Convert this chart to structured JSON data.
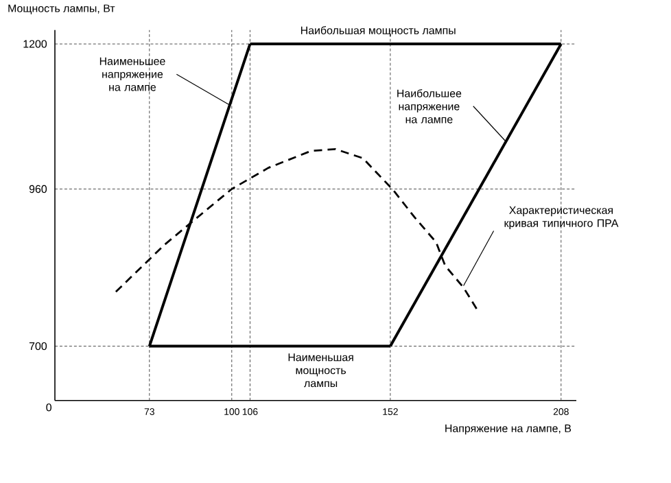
{
  "chart_data": {
    "type": "line",
    "xlabel": "Напряжение на лампе, В",
    "ylabel": "Мощность лампы, Вт",
    "xlim": [
      42,
      213
    ],
    "ylim": [
      610,
      1223
    ],
    "xticks": [
      73,
      100,
      106,
      152,
      208
    ],
    "yticks": [
      700,
      960,
      1200
    ],
    "grid": true,
    "series": [
      {
        "color": "#000000",
        "line_style": "solid",
        "x": [
          73,
          106
        ],
        "values": [
          700,
          1200
        ]
      },
      {
        "color": "#000000",
        "line_style": "solid",
        "x": [
          106,
          208
        ],
        "values": [
          1200,
          1200
        ]
      },
      {
        "color": "#000000",
        "line_style": "solid",
        "x": [
          152,
          208
        ],
        "values": [
          700,
          1200
        ]
      },
      {
        "color": "#000000",
        "line_style": "solid",
        "x": [
          73,
          152
        ],
        "values": [
          700,
          700
        ]
      },
      {
        "color": "#000000",
        "line_style": "dashed",
        "x": [
          62,
          78,
          88,
          100,
          112,
          126,
          134,
          143,
          153,
          160,
          167,
          170,
          176,
          181
        ],
        "values": [
          790,
          868,
          910,
          960,
          995,
          1023,
          1026,
          1011,
          958,
          913,
          872,
          833,
          797,
          756
        ]
      }
    ],
    "annotations": [
      "Наибольшая мощность лампы",
      {
        "text": "Наименьшее напряжение на лампе",
        "x": 99,
        "y": 1100
      },
      {
        "text": "Наибольшее напряжение на лампе",
        "x": 190,
        "y": 1038
      },
      {
        "text": "Характеристическая кривая типичного ПРА",
        "x": 176,
        "y": 800
      },
      "Наименьшая мощность лампы",
      "0"
    ]
  }
}
